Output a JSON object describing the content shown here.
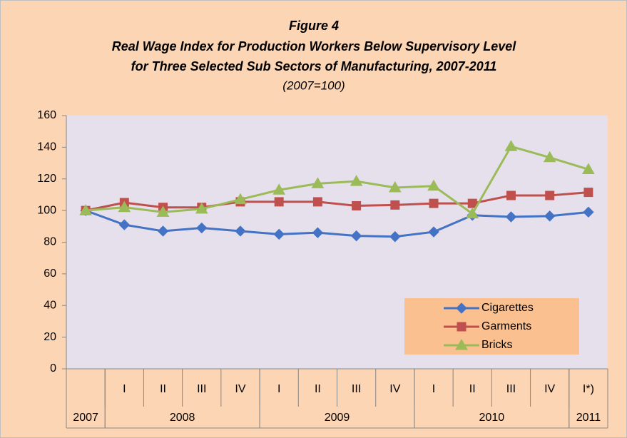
{
  "chart_data": {
    "type": "line",
    "title": "Figure 4",
    "title_lines": [
      "Real Wage Index for Production Workers Below Supervisory Level",
      "for Three Selected Sub Sectors of Manufacturing, 2007-2011"
    ],
    "subtitle": "(2007=100)",
    "categories": [
      null,
      "I",
      "II",
      "III",
      "IV",
      "I",
      "II",
      "III",
      "IV",
      "I",
      "II",
      "III",
      "IV",
      "I*)"
    ],
    "category_groups": [
      {
        "label": "2007",
        "count": 1
      },
      {
        "label": "2008",
        "count": 4
      },
      {
        "label": "2009",
        "count": 4
      },
      {
        "label": "2010",
        "count": 4
      },
      {
        "label": "2011",
        "count": 1
      }
    ],
    "series": [
      {
        "name": "Cigarettes",
        "color": "#4472c4",
        "marker": "diamond",
        "values": [
          100,
          91,
          87,
          89,
          87,
          85,
          86,
          84,
          83.5,
          86.5,
          97,
          96,
          96.5,
          99
        ]
      },
      {
        "name": "Garments",
        "color": "#c0504d",
        "marker": "square",
        "values": [
          100,
          105,
          102,
          102,
          105.5,
          105.5,
          105.5,
          103,
          103.5,
          104.5,
          104.5,
          109.5,
          109.5,
          111.5
        ]
      },
      {
        "name": "Bricks",
        "color": "#9bbb59",
        "marker": "triangle",
        "values": [
          100,
          102,
          99,
          101,
          107,
          113,
          117,
          118.5,
          114.5,
          115.5,
          98,
          140.5,
          133.5,
          126
        ]
      }
    ],
    "ylim": [
      0,
      160
    ],
    "yticks": [
      0,
      20,
      40,
      60,
      80,
      100,
      120,
      140,
      160
    ],
    "grid": false,
    "legend": "lower right"
  }
}
